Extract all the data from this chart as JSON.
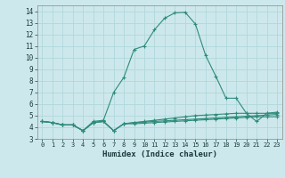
{
  "xlabel": "Humidex (Indice chaleur)",
  "background_color": "#cde8ec",
  "grid_color": "#b0d8dc",
  "line_color": "#2e8b7a",
  "xlim": [
    -0.5,
    23.5
  ],
  "ylim": [
    3,
    14.5
  ],
  "yticks": [
    3,
    4,
    5,
    6,
    7,
    8,
    9,
    10,
    11,
    12,
    13,
    14
  ],
  "xticks": [
    0,
    1,
    2,
    3,
    4,
    5,
    6,
    7,
    8,
    9,
    10,
    11,
    12,
    13,
    14,
    15,
    16,
    17,
    18,
    19,
    20,
    21,
    22,
    23
  ],
  "series": [
    {
      "x": [
        0,
        1,
        2,
        3,
        4,
        5,
        6,
        7,
        8,
        9,
        10,
        11,
        12,
        13,
        14,
        15,
        16,
        17,
        18,
        19,
        20,
        21,
        22,
        23
      ],
      "y": [
        4.5,
        4.4,
        4.2,
        4.2,
        3.7,
        4.4,
        4.5,
        3.7,
        4.3,
        4.3,
        4.35,
        4.4,
        4.45,
        4.5,
        4.55,
        4.6,
        4.65,
        4.7,
        4.75,
        4.8,
        4.85,
        4.9,
        4.9,
        4.9
      ]
    },
    {
      "x": [
        0,
        1,
        2,
        3,
        4,
        5,
        6,
        7,
        8,
        9,
        10,
        11,
        12,
        13,
        14,
        15,
        16,
        17,
        18,
        19,
        20,
        21,
        22,
        23
      ],
      "y": [
        4.5,
        4.4,
        4.2,
        4.2,
        3.7,
        4.4,
        4.5,
        3.7,
        4.3,
        4.4,
        4.5,
        4.6,
        4.7,
        4.8,
        4.9,
        5.0,
        5.05,
        5.1,
        5.15,
        5.2,
        5.2,
        5.2,
        5.2,
        5.2
      ]
    },
    {
      "x": [
        0,
        1,
        2,
        3,
        4,
        5,
        6,
        7,
        8,
        9,
        10,
        11,
        12,
        13,
        14,
        15,
        16,
        17,
        18,
        19,
        20,
        21,
        22,
        23
      ],
      "y": [
        4.5,
        4.4,
        4.2,
        4.2,
        3.7,
        4.4,
        4.5,
        3.7,
        4.3,
        4.4,
        4.45,
        4.5,
        4.55,
        4.6,
        4.65,
        4.7,
        4.75,
        4.8,
        4.85,
        4.9,
        4.95,
        5.0,
        5.05,
        5.1
      ]
    },
    {
      "x": [
        0,
        1,
        2,
        3,
        4,
        5,
        6,
        7,
        8,
        9,
        10,
        11,
        12,
        13,
        14,
        15,
        16,
        17,
        18,
        19,
        20,
        21,
        22,
        23
      ],
      "y": [
        4.5,
        4.4,
        4.2,
        4.2,
        3.7,
        4.5,
        4.6,
        7.0,
        8.3,
        10.7,
        11.0,
        12.4,
        13.4,
        13.85,
        13.9,
        12.9,
        10.2,
        8.4,
        6.5,
        6.5,
        5.2,
        4.5,
        5.2,
        5.3
      ]
    }
  ]
}
